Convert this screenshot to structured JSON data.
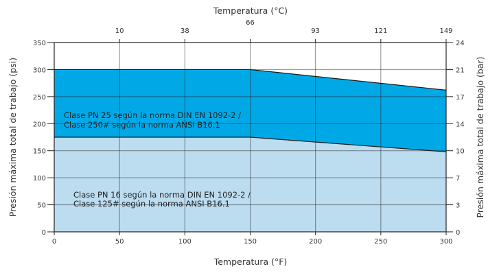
{
  "chart_data": {
    "type": "area",
    "xlabel_bottom": "Temperatura (°F)",
    "xlabel_top": "Temperatura (°C)",
    "ylabel_left": "Presión máxima total de trabajo (psi)",
    "ylabel_right": "Presión máxima total de trabajo (bar)",
    "xlim": [
      0,
      300
    ],
    "ylim": [
      0,
      350
    ],
    "grid": true,
    "x_ticks_bottom": [
      "0",
      "50",
      "100",
      "150",
      "200",
      "250",
      "300"
    ],
    "x_ticks_top": [
      {
        "x": 50,
        "label": "10"
      },
      {
        "x": 100,
        "label": "38"
      },
      {
        "x": 150,
        "label": "66"
      },
      {
        "x": 200,
        "label": "93"
      },
      {
        "x": 250,
        "label": "121"
      },
      {
        "x": 300,
        "label": "149"
      }
    ],
    "y_ticks_left": [
      "0",
      "50",
      "100",
      "150",
      "200",
      "250",
      "300",
      "350"
    ],
    "y_ticks_right": [
      {
        "y": 0,
        "label": "0"
      },
      {
        "y": 50,
        "label": "3"
      },
      {
        "y": 100,
        "label": "7"
      },
      {
        "y": 150,
        "label": "10"
      },
      {
        "y": 200,
        "label": "14"
      },
      {
        "y": 250,
        "label": "17"
      },
      {
        "y": 300,
        "label": "21"
      },
      {
        "y": 350,
        "label": "24"
      }
    ],
    "series": [
      {
        "name": "Clase PN 25 según la norma DIN EN 1092-2 / Clase 250# según la norma ANSI B16.1",
        "label_lines": [
          "Clase PN 25 según la norma DIN EN 1092-2 /",
          "Clase 250# según la norma ANSI B16.1"
        ],
        "color": "#00a8e6",
        "x": [
          0,
          150,
          300
        ],
        "y": [
          300,
          300,
          262
        ]
      },
      {
        "name": "Clase PN 16 según la norma DIN EN 1092-2 / Clase 125# según la norma ANSI B16.1",
        "label_lines": [
          "Clase PN 16 según la norma DIN EN 1092-2 /",
          "Clase 125# según la norma ANSI B16.1"
        ],
        "color": "#bcdcf0",
        "x": [
          0,
          150,
          300
        ],
        "y": [
          175,
          175,
          148
        ]
      }
    ]
  }
}
